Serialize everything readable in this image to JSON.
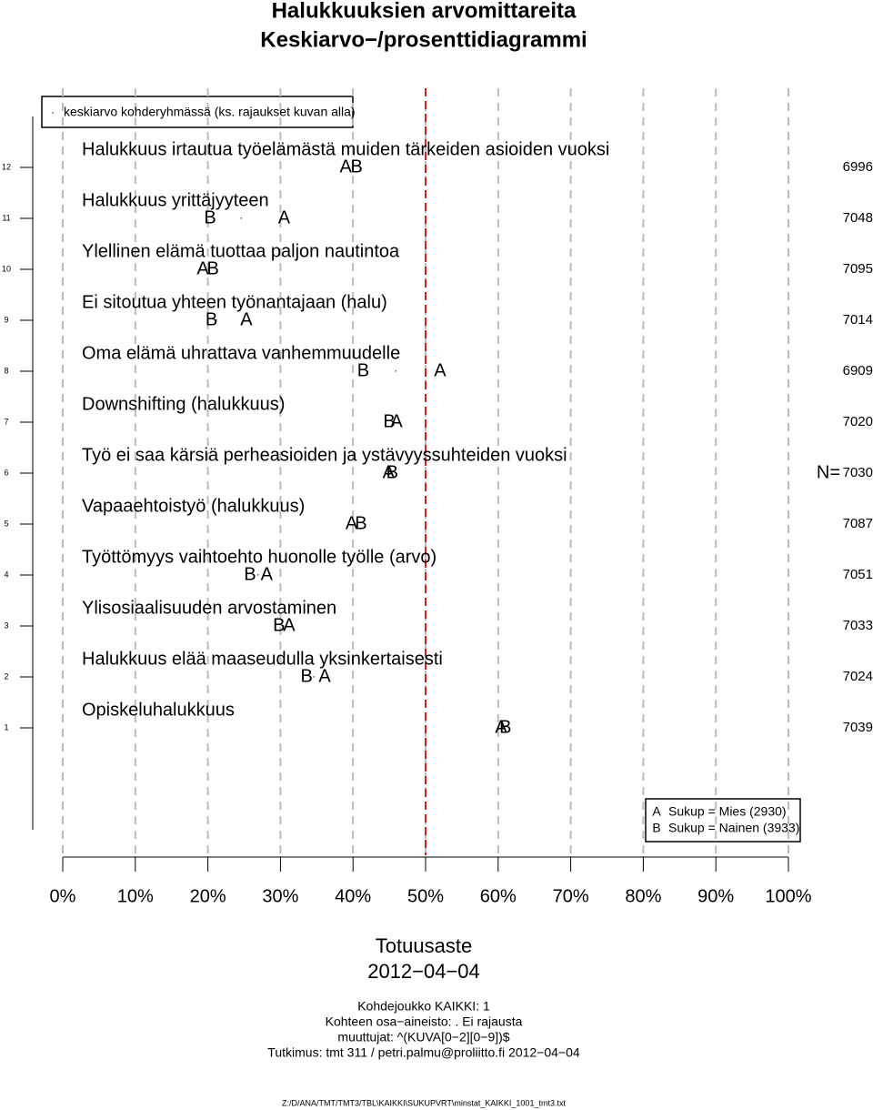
{
  "chart_data": {
    "type": "letter-dot",
    "title": [
      "Halukkuuksien arvomittareita",
      "Keskiarvo−/prosenttidiagrammi"
    ],
    "categories": [
      "Halukkuus irtautua työelämästä muiden tärkeiden asioiden vuoksi",
      "Halukkuus yrittäjyyteen",
      "Ylellinen elämä tuottaa paljon nautintoa",
      "Ei sitoutua yhteen työnantajaan (halu)",
      "Oma elämä uhrattava vanhemmuudelle",
      "Downshifting (halukkuus)",
      "Työ ei saa kärsiä perheasioiden ja ystävyyssuhteiden vuoksi",
      "Vapaaehtoistyö (halukkuus)",
      "Työttömyys vaihtoehto huonolle työlle (arvo)",
      "Ylisosiaalisuuden arvostaminen",
      "Halukkuus elää maaseudulla yksinkertaisesti",
      "Opiskeluhalukkuus"
    ],
    "y": [
      12,
      11,
      10,
      9,
      8,
      7,
      6,
      5,
      4,
      3,
      2,
      1
    ],
    "ylim": [
      -1,
      13
    ],
    "yticks": [
      1,
      2,
      3,
      4,
      5,
      6,
      7,
      8,
      9,
      10,
      11,
      12
    ],
    "xlim": [
      0,
      100
    ],
    "xticks": [
      {
        "value": 0,
        "label": "0%"
      },
      {
        "value": 10,
        "label": "10%"
      },
      {
        "value": 20,
        "label": "20%"
      },
      {
        "value": 30,
        "label": "30%"
      },
      {
        "value": 40,
        "label": "40%"
      },
      {
        "value": 50,
        "label": "50%"
      },
      {
        "value": 60,
        "label": "60%"
      },
      {
        "value": 70,
        "label": "70%"
      },
      {
        "value": 80,
        "label": "80%"
      },
      {
        "value": 90,
        "label": "90%"
      },
      {
        "value": 100,
        "label": "100%"
      }
    ],
    "grid": true,
    "refline": 50,
    "refline_color": "#e31a1c",
    "series": [
      {
        "name": "keskiarvo kohderyhmässä (ks. rajaukset kuvan alla)",
        "marker": "·",
        "color": "#000000",
        "values": [
          39.9,
          24.6,
          20.1,
          21.2,
          45.9,
          45.6,
          45.2,
          40.5,
          26.9,
          30.4,
          34.6,
          60.7
        ]
      },
      {
        "name": "Sukup = Mies (2930)",
        "marker": "A",
        "color": "#000000",
        "values": [
          39,
          30.5,
          19.3,
          25.3,
          52,
          46,
          44.9,
          39.8,
          28.1,
          31.2,
          36.1,
          60.4
        ]
      },
      {
        "name": "Sukup = Nainen (3933)",
        "marker": "B",
        "color": "#000000",
        "values": [
          40.5,
          20.3,
          20.7,
          20.5,
          41.4,
          45,
          45.4,
          41.1,
          25.8,
          29.8,
          33.6,
          61
        ]
      }
    ],
    "n_label": "N=",
    "n_color": "#1a7a1a",
    "n": [
      6996,
      7048,
      7095,
      7014,
      6909,
      7020,
      7030,
      7087,
      7051,
      7033,
      7024,
      7039
    ],
    "xlabel": "Totuusaste",
    "date": "2012−04−04",
    "notes": [
      "Kohdejoukko KAIKKI: 1",
      "Kohteen osa−aineisto: . Ei rajausta",
      "muuttujat: ^(KUVA[0−2][0−9])$",
      "Tutkimus: tmt 311 / petri.palmu@proliitto.fi 2012−04−04"
    ],
    "file": "Z:/D/ANA/TMT/TMT3/TBL\\KAIKKI\\SUKUPVRT\\minstat_KAIKKI_1001_tmt3.txt"
  }
}
